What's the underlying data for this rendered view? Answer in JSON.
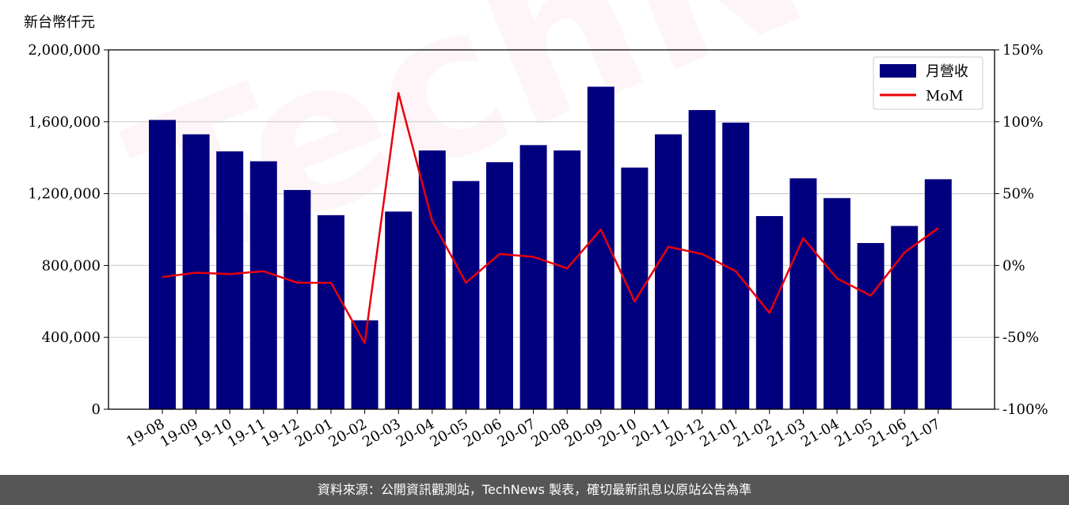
{
  "unit_label": "新台幣仟元",
  "footer": "資料來源：公開資訊觀測站，TechNews 製表，確切最新訊息以原站公告為準",
  "watermark": "TechNews",
  "colors": {
    "bar": "#00007f",
    "line": "#e8000b",
    "grid": "#cfcfcf",
    "footer_bg": "#565656"
  },
  "chart_data": {
    "type": "bar",
    "categories": [
      "19-08",
      "19-09",
      "19-10",
      "19-11",
      "19-12",
      "20-01",
      "20-02",
      "20-03",
      "20-04",
      "20-05",
      "20-06",
      "20-07",
      "20-08",
      "20-09",
      "20-10",
      "20-11",
      "20-12",
      "21-01",
      "21-02",
      "21-03",
      "21-04",
      "21-05",
      "21-06",
      "21-07"
    ],
    "series": [
      {
        "name": "月營收",
        "type": "bar",
        "axis": "left",
        "values": [
          1610000,
          1530000,
          1435000,
          1380000,
          1220000,
          1080000,
          495000,
          1100000,
          1440000,
          1270000,
          1375000,
          1470000,
          1440000,
          1795000,
          1345000,
          1530000,
          1665000,
          1595000,
          1075000,
          1285000,
          1175000,
          925000,
          1020000,
          1280000
        ]
      },
      {
        "name": "MoM",
        "type": "line",
        "axis": "right",
        "values": [
          -8,
          -5,
          -6,
          -4,
          -12,
          -12,
          -54,
          120,
          31,
          -12,
          8,
          6,
          -2,
          25,
          -25,
          13,
          8,
          -4,
          -33,
          19,
          -9,
          -21,
          9,
          26
        ]
      }
    ],
    "y_left": {
      "min": 0,
      "max": 2000000,
      "ticks": [
        0,
        400000,
        800000,
        1200000,
        1600000,
        2000000
      ],
      "tick_labels": [
        "0",
        "400,000",
        "800,000",
        "1,200,000",
        "1,600,000",
        "2,000,000"
      ]
    },
    "y_right": {
      "min": -100,
      "max": 150,
      "ticks": [
        -100,
        -50,
        0,
        50,
        100,
        150
      ],
      "tick_labels": [
        "-100%",
        "-50%",
        "0%",
        "50%",
        "100%",
        "150%"
      ]
    },
    "grid": true,
    "legend": "top-right"
  }
}
